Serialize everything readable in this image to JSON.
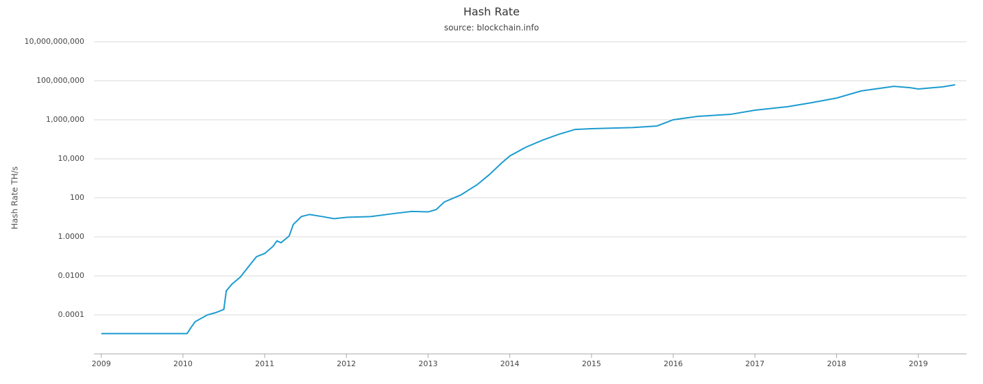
{
  "chart_data": {
    "type": "line",
    "title": "Hash Rate",
    "subtitle": "source: blockchain.info",
    "y_label": "Hash Rate TH/s",
    "log_y": true,
    "grid": true,
    "xlim": [
      2008.91,
      2019.59
    ],
    "xticks": [
      2009,
      2010,
      2011,
      2012,
      2013,
      2014,
      2015,
      2016,
      2017,
      2018,
      2019
    ],
    "ylim": [
      1e-06,
      10000000000
    ],
    "yticks": [
      {
        "value": 0.0001,
        "label": "0.0001"
      },
      {
        "value": 0.01,
        "label": "0.0100"
      },
      {
        "value": 1,
        "label": "1.0000"
      },
      100,
      {
        "value": 10000,
        "label": "10,000"
      },
      {
        "value": 1000000,
        "label": "1,000,000"
      },
      {
        "value": 100000000,
        "label": "100,000,000"
      },
      {
        "value": 10000000000,
        "label": "10,000,000,000"
      }
    ],
    "x": [
      2009.0,
      2010.05,
      2010.1,
      2010.15,
      2010.3,
      2010.4,
      2010.5,
      2010.53,
      2010.6,
      2010.7,
      2010.8,
      2010.9,
      2011.0,
      2011.1,
      2011.15,
      2011.2,
      2011.3,
      2011.35,
      2011.45,
      2011.55,
      2011.7,
      2011.85,
      2012.0,
      2012.3,
      2012.6,
      2012.8,
      2013.0,
      2013.1,
      2013.2,
      2013.4,
      2013.6,
      2013.75,
      2013.9,
      2014.0,
      2014.2,
      2014.4,
      2014.6,
      2014.8,
      2015.0,
      2015.5,
      2015.8,
      2016.0,
      2016.3,
      2016.7,
      2017.0,
      2017.4,
      2017.7,
      2018.0,
      2018.3,
      2018.7,
      2018.9,
      2019.0,
      2019.3,
      2019.45
    ],
    "series": [
      {
        "name": "Hash Rate",
        "color": "#1a9bd0",
        "values": [
          1.1e-05,
          1.1e-05,
          2.3e-05,
          4.5e-05,
          0.0001,
          0.00013,
          0.00019,
          0.0017,
          0.0038,
          0.0085,
          0.029,
          0.096,
          0.14,
          0.32,
          0.62,
          0.5,
          1.1,
          4.3,
          11,
          14,
          11,
          8.5,
          10,
          11,
          16,
          20,
          19,
          25,
          62,
          140,
          470,
          1550,
          6100,
          14000,
          40000,
          90000,
          180000,
          320000,
          350000,
          400000,
          480000,
          1000000,
          1500000,
          1900000,
          3100000,
          4700000,
          7600000,
          13000000,
          30000000,
          52000000,
          44000000,
          38000000,
          49000000,
          62000000
        ]
      }
    ]
  }
}
